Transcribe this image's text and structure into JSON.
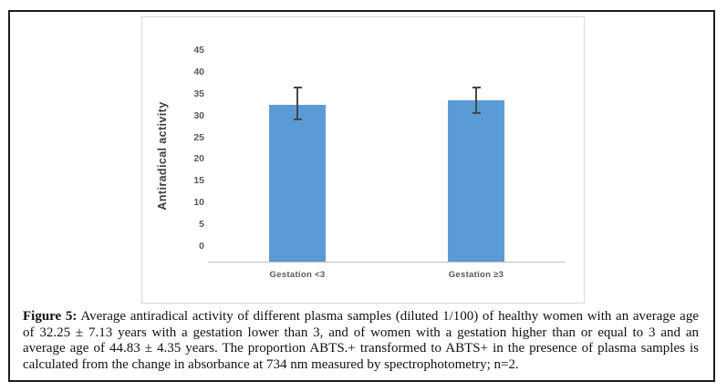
{
  "figure": {
    "caption_label": "Figure 5:",
    "caption_text": "Average antiradical activity of different plasma samples (diluted 1/100) of healthy women with an average age of 32.25 ± 7.13 years with a gestation lower than 3, and of women with a gestation higher than or equal to 3 and an average age of 44.83 ± 4.35 years. The proportion ABTS.+ transformed to ABTS+ in the presence of plasma samples is calculated from the change in absorbance at 734 nm measured by spectrophotometry; n=2."
  },
  "chart_data": {
    "type": "bar",
    "title": "",
    "xlabel": "",
    "ylabel": "Antiradical activity",
    "categories": [
      "Gestation <3",
      "Gestation ≥3"
    ],
    "values": [
      32.5,
      33.5
    ],
    "error_high": [
      36.5,
      36.5
    ],
    "error_low": [
      29.0,
      30.5
    ],
    "y_ticks": [
      0,
      5,
      10,
      15,
      20,
      25,
      30,
      35,
      40,
      45
    ],
    "ylim": [
      0,
      47
    ],
    "grid": "off",
    "legend_position": "none",
    "bar_color": "#5b9bd5",
    "axis_line_color": "#bfbfbf",
    "tick_label_color": "#595959",
    "error_bar_color": "#464646",
    "chart_border_color": "#d9d9d9",
    "outer_frame_color": "#1c1c1c"
  }
}
